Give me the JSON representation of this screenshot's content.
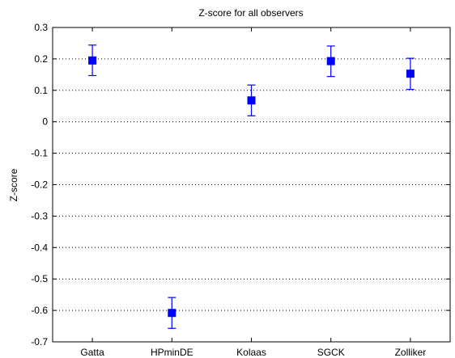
{
  "chart_data": {
    "type": "scatter",
    "title": "Z-score for all observers",
    "xlabel": "",
    "ylabel": "Z-score",
    "categories": [
      "Gatta",
      "HPminDE",
      "Kolaas",
      "SGCK",
      "Zolliker"
    ],
    "series": [
      {
        "values": [
          0.195,
          -0.608,
          0.068,
          0.193,
          0.153
        ],
        "err_lower": [
          0.147,
          -0.657,
          0.019,
          0.144,
          0.103
        ],
        "err_upper": [
          0.244,
          -0.559,
          0.117,
          0.241,
          0.202
        ]
      }
    ],
    "ylim": [
      -0.7,
      0.3
    ],
    "yticks": [
      -0.7,
      -0.6,
      -0.5,
      -0.4,
      -0.3,
      -0.2,
      -0.1,
      0,
      0.1,
      0.2,
      0.3
    ],
    "ytick_labels": [
      "-0.7",
      "-0.6",
      "-0.5",
      "-0.4",
      "-0.3",
      "-0.2",
      "-0.1",
      "0",
      "0.1",
      "0.2",
      "0.3"
    ],
    "grid": "horizontal-dotted",
    "marker_color": "#0000ff"
  }
}
